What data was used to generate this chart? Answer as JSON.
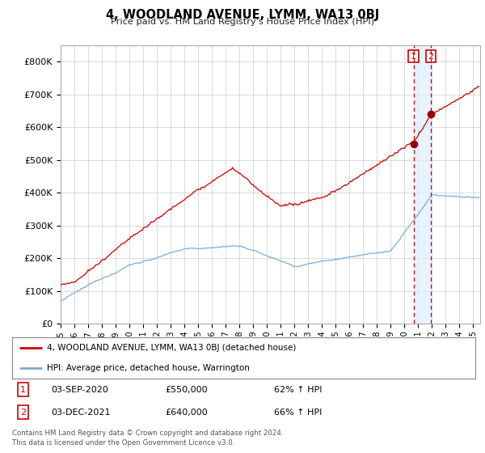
{
  "title": "4, WOODLAND AVENUE, LYMM, WA13 0BJ",
  "subtitle": "Price paid vs. HM Land Registry's House Price Index (HPI)",
  "ylim": [
    0,
    850000
  ],
  "yticks": [
    0,
    100000,
    200000,
    300000,
    400000,
    500000,
    600000,
    700000,
    800000
  ],
  "ytick_labels": [
    "£0",
    "£100K",
    "£200K",
    "£300K",
    "£400K",
    "£500K",
    "£600K",
    "£700K",
    "£800K"
  ],
  "red_line_color": "#cc0000",
  "blue_line_color": "#7aadd4",
  "shade_color": "#ddeeff",
  "marker_color": "#990000",
  "sale1_x": 2020.667,
  "sale1_y": 550000,
  "sale2_x": 2021.917,
  "sale2_y": 640000,
  "legend_red": "4, WOODLAND AVENUE, LYMM, WA13 0BJ (detached house)",
  "legend_blue": "HPI: Average price, detached house, Warrington",
  "footer": "Contains HM Land Registry data © Crown copyright and database right 2024.\nThis data is licensed under the Open Government Licence v3.0.",
  "table_rows": [
    [
      "1",
      "03-SEP-2020",
      "£550,000",
      "62% ↑ HPI"
    ],
    [
      "2",
      "03-DEC-2021",
      "£640,000",
      "66% ↑ HPI"
    ]
  ],
  "background_color": "#ffffff",
  "grid_color": "#cccccc",
  "xlim_start": 1995.0,
  "xlim_end": 2025.5
}
